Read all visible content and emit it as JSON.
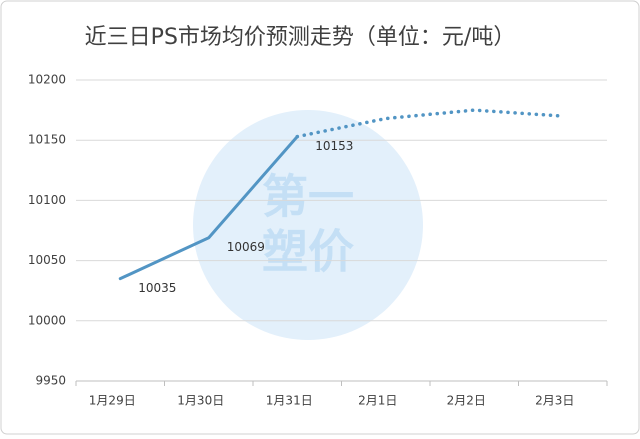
{
  "chart_data": {
    "type": "line",
    "title": "近三日PS市场均价预测走势（单位：元/吨）",
    "categories": [
      "1月29日",
      "1月30日",
      "1月31日",
      "2月1日",
      "2月2日",
      "2月3日"
    ],
    "series": [
      {
        "color": "#5295c4",
        "dash": false,
        "data_labels": true,
        "values": [
          10035,
          10069,
          10153,
          null,
          null,
          null
        ]
      },
      {
        "color": "#5295c4",
        "dash": true,
        "data_labels": false,
        "values": [
          null,
          null,
          10153,
          10168,
          10175,
          10170
        ]
      }
    ],
    "ylim": [
      9950,
      10200
    ],
    "yticks": [
      9950,
      10000,
      10050,
      10100,
      10150,
      10200
    ],
    "grid": true,
    "watermark": [
      "第一",
      "塑价"
    ]
  }
}
